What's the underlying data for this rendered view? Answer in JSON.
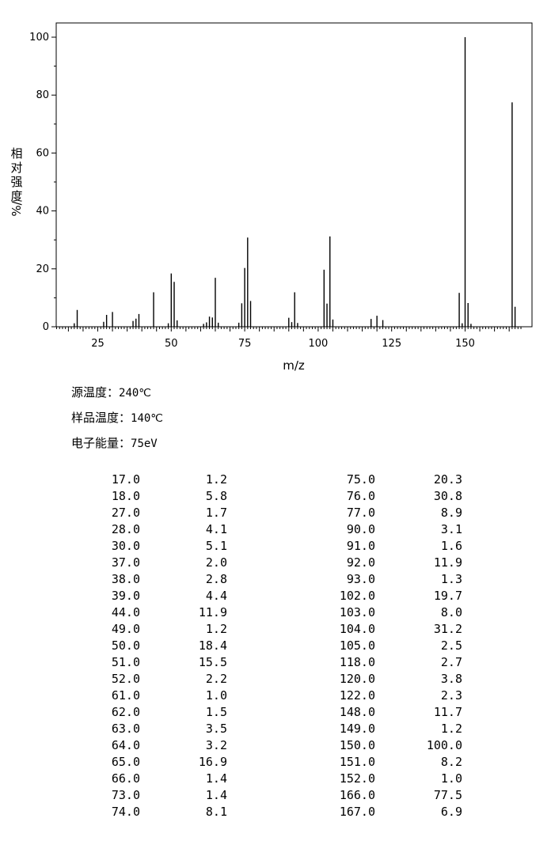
{
  "chart_data": {
    "type": "bar",
    "xlabel": "m/z",
    "ylabel_chars": [
      "相",
      "对",
      "强",
      "度"
    ],
    "ylabel_unit": "%/",
    "xlim": [
      10,
      170
    ],
    "ylim": [
      0,
      100
    ],
    "x_ticks": [
      25,
      50,
      75,
      100,
      125,
      150
    ],
    "y_ticks": [
      0,
      20,
      40,
      60,
      80,
      100
    ],
    "grid": false,
    "x": [
      17,
      18,
      27,
      28,
      30,
      37,
      38,
      39,
      44,
      49,
      50,
      51,
      52,
      61,
      62,
      63,
      64,
      65,
      66,
      73,
      74,
      75,
      76,
      77,
      90,
      91,
      92,
      93,
      102,
      103,
      104,
      105,
      118,
      120,
      122,
      148,
      149,
      150,
      151,
      152,
      166,
      167
    ],
    "values": [
      1.2,
      5.8,
      1.7,
      4.1,
      5.1,
      2.0,
      2.8,
      4.4,
      11.9,
      1.2,
      18.4,
      15.5,
      2.2,
      1.0,
      1.5,
      3.5,
      3.2,
      16.9,
      1.4,
      1.4,
      8.1,
      20.3,
      30.8,
      8.9,
      3.1,
      1.6,
      11.9,
      1.3,
      19.7,
      8.0,
      31.2,
      2.5,
      2.7,
      3.8,
      2.3,
      11.7,
      1.2,
      100.0,
      8.2,
      1.0,
      77.5,
      6.9
    ]
  },
  "conditions": [
    {
      "label": "源温度：",
      "value": "240℃"
    },
    {
      "label": "样品温度：",
      "value": "140℃"
    },
    {
      "label": "电子能量：",
      "value": "75eV"
    }
  ],
  "peaks": {
    "left": [
      [
        "17.0",
        "1.2"
      ],
      [
        "18.0",
        "5.8"
      ],
      [
        "27.0",
        "1.7"
      ],
      [
        "28.0",
        "4.1"
      ],
      [
        "30.0",
        "5.1"
      ],
      [
        "37.0",
        "2.0"
      ],
      [
        "38.0",
        "2.8"
      ],
      [
        "39.0",
        "4.4"
      ],
      [
        "44.0",
        "11.9"
      ],
      [
        "49.0",
        "1.2"
      ],
      [
        "50.0",
        "18.4"
      ],
      [
        "51.0",
        "15.5"
      ],
      [
        "52.0",
        "2.2"
      ],
      [
        "61.0",
        "1.0"
      ],
      [
        "62.0",
        "1.5"
      ],
      [
        "63.0",
        "3.5"
      ],
      [
        "64.0",
        "3.2"
      ],
      [
        "65.0",
        "16.9"
      ],
      [
        "66.0",
        "1.4"
      ],
      [
        "73.0",
        "1.4"
      ],
      [
        "74.0",
        "8.1"
      ]
    ],
    "right": [
      [
        "75.0",
        "20.3"
      ],
      [
        "76.0",
        "30.8"
      ],
      [
        "77.0",
        "8.9"
      ],
      [
        "90.0",
        "3.1"
      ],
      [
        "91.0",
        "1.6"
      ],
      [
        "92.0",
        "11.9"
      ],
      [
        "93.0",
        "1.3"
      ],
      [
        "102.0",
        "19.7"
      ],
      [
        "103.0",
        "8.0"
      ],
      [
        "104.0",
        "31.2"
      ],
      [
        "105.0",
        "2.5"
      ],
      [
        "118.0",
        "2.7"
      ],
      [
        "120.0",
        "3.8"
      ],
      [
        "122.0",
        "2.3"
      ],
      [
        "148.0",
        "11.7"
      ],
      [
        "149.0",
        "1.2"
      ],
      [
        "150.0",
        "100.0"
      ],
      [
        "151.0",
        "8.2"
      ],
      [
        "152.0",
        "1.0"
      ],
      [
        "166.0",
        "77.5"
      ],
      [
        "167.0",
        "6.9"
      ]
    ]
  }
}
